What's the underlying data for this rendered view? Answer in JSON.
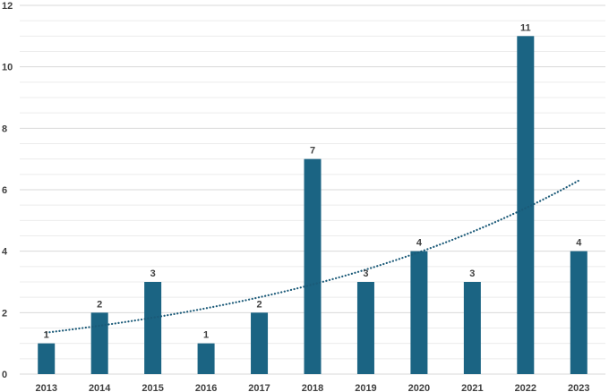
{
  "chart_data": {
    "type": "bar",
    "title": "",
    "xlabel": "",
    "ylabel": "",
    "categories": [
      "2013",
      "2014",
      "2015",
      "2016",
      "2017",
      "2018",
      "2019",
      "2020",
      "2021",
      "2022",
      "2023"
    ],
    "values": [
      1,
      2,
      3,
      1,
      2,
      7,
      3,
      4,
      3,
      11,
      4
    ],
    "ylim": [
      0,
      12
    ],
    "y_ticks": [
      0,
      2,
      4,
      6,
      8,
      10,
      12
    ],
    "bar_color": "#1b6483",
    "trendline": {
      "type": "exponential",
      "style": "dotted",
      "color": "#1b5a78",
      "start_value": 1.35,
      "end_value": 6.3
    },
    "grid": true,
    "data_labels": true,
    "legend": "none"
  }
}
